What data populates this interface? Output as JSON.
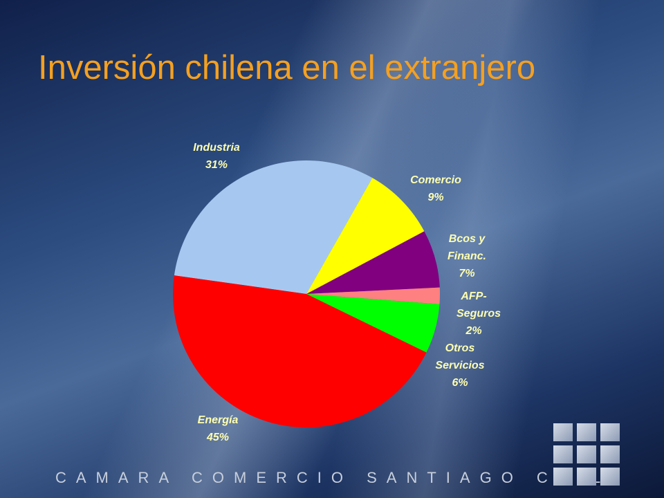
{
  "chart_data": {
    "type": "pie",
    "title": "Inversión chilena en el extranjero",
    "categories": [
      "Industria",
      "Comercio",
      "Bcos y Financ.",
      "AFP-Seguros",
      "Otros Servicios",
      "Energía"
    ],
    "values": [
      31,
      9,
      7,
      2,
      6,
      45
    ],
    "value_labels": [
      "31%",
      "9%",
      "7%",
      "2%",
      "6%",
      "45%"
    ],
    "colors": [
      "#a6c8f0",
      "#ffff00",
      "#800080",
      "#ff8080",
      "#00ff00",
      "#ff0000"
    ]
  },
  "footer": "CAMARA COMERCIO SANTIAGO CHILE"
}
